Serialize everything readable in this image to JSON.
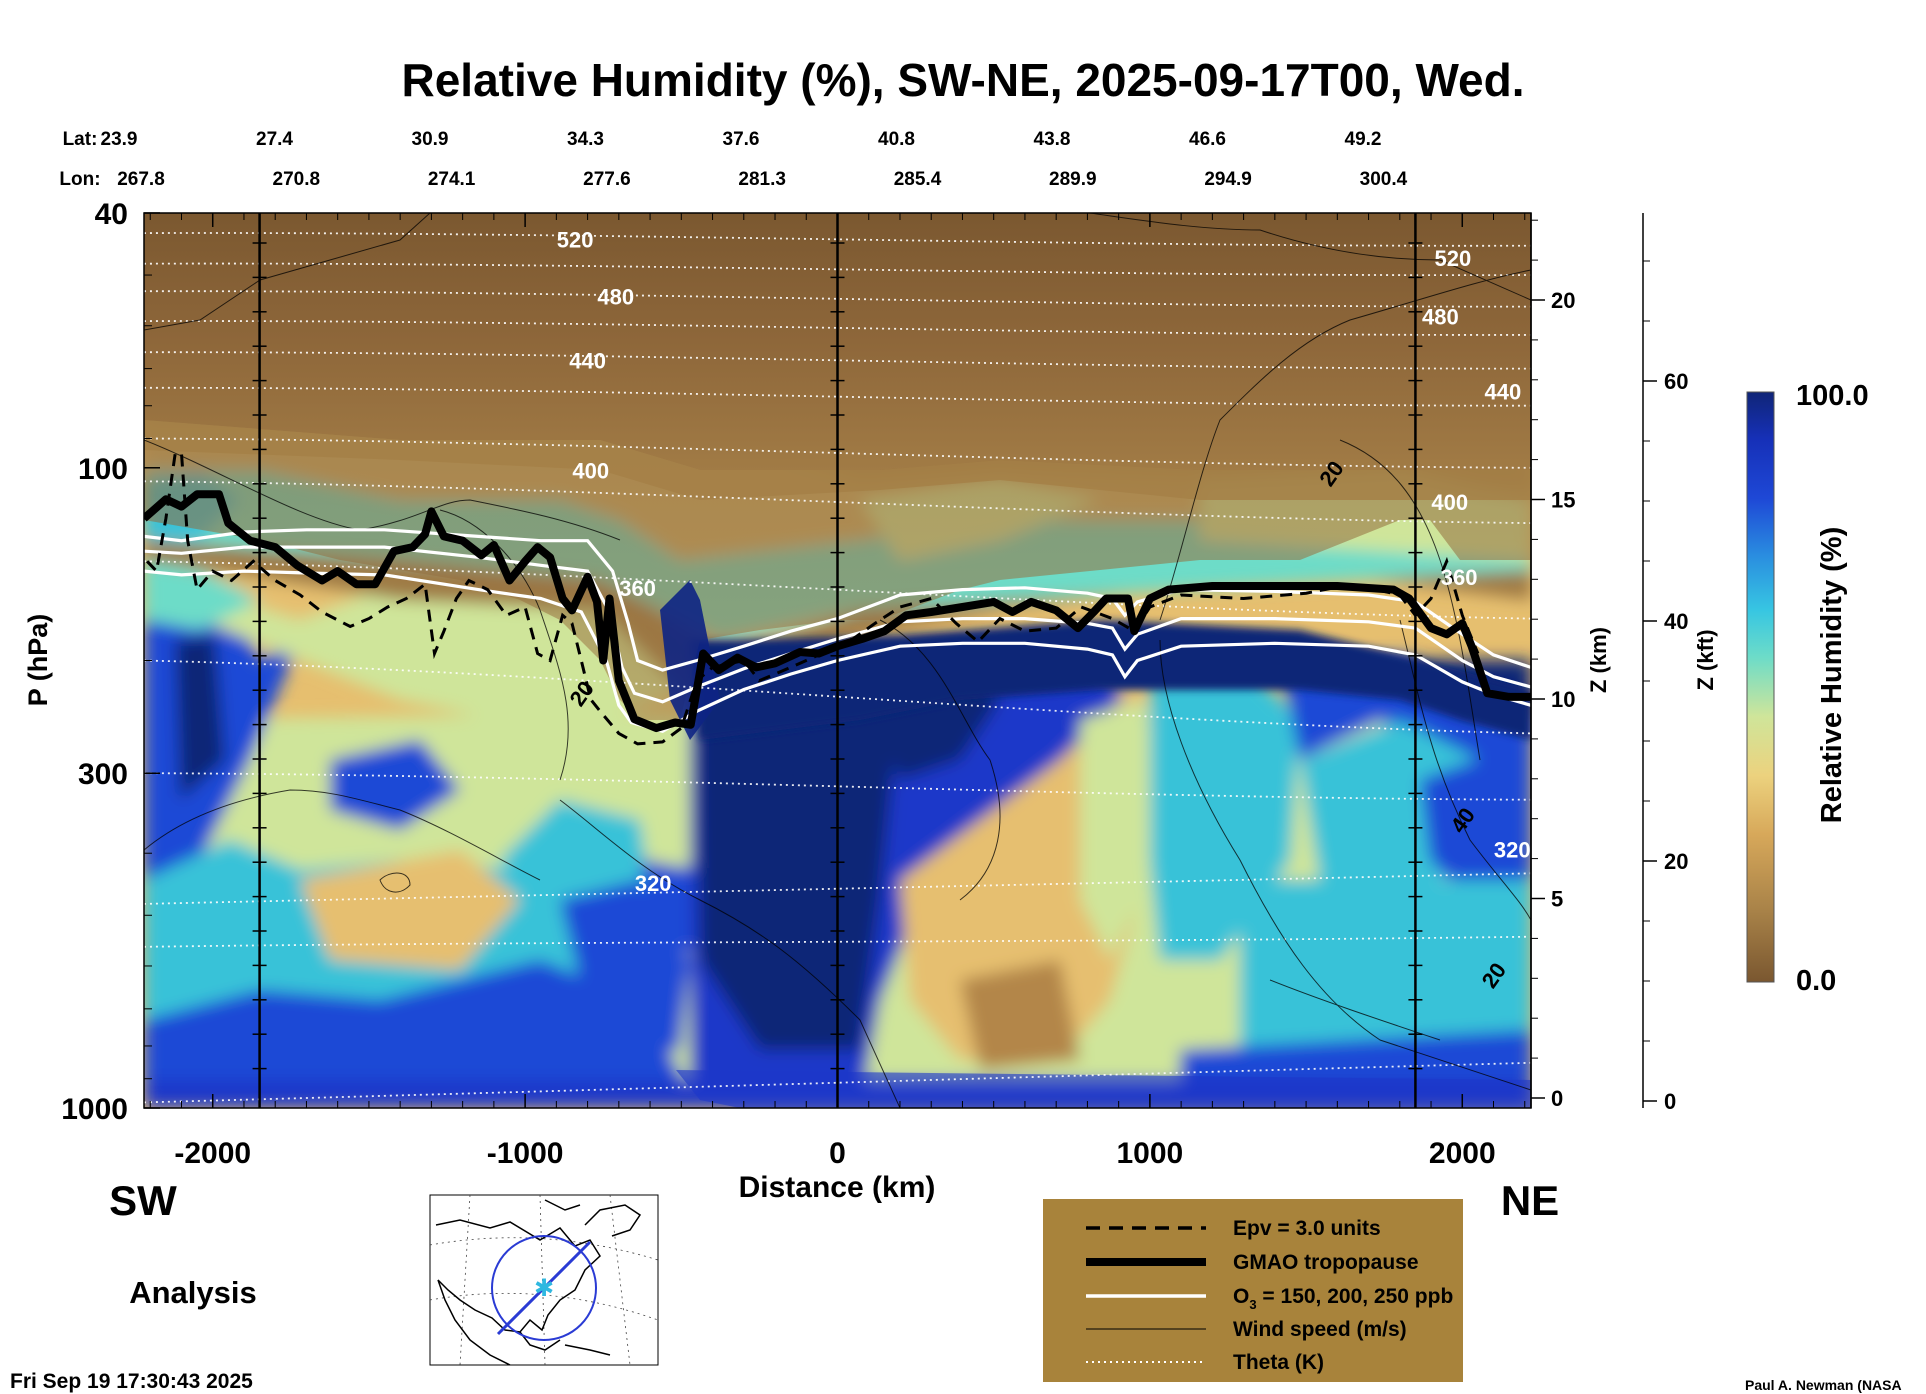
{
  "chart_data": {
    "type": "heatmap",
    "title": "Relative Humidity (%), SW-NE, 2025-09-17T00, Wed.",
    "xlabel": "Distance (km)",
    "ylabel": "P (hPa)",
    "z_km_label": "Z (km)",
    "z_kft_label": "Z (kft)",
    "colorbar_label": "Relative Humidity (%)",
    "colorbar_max": "100.0",
    "colorbar_min": "0.0",
    "xlim": [
      -2220,
      2220
    ],
    "ylim_hpa": [
      1000,
      40
    ],
    "x_ticks": [
      "-2000",
      "-1000",
      "0",
      "1000",
      "2000"
    ],
    "x_tick_values": [
      -2000,
      -1000,
      0,
      1000,
      2000
    ],
    "p_ticks": [
      "40",
      "100",
      "300",
      "1000"
    ],
    "p_tick_values": [
      40,
      100,
      300,
      1000
    ],
    "z_km_ticks": [
      "0",
      "5",
      "10",
      "15",
      "20"
    ],
    "z_km_values": [
      0,
      5,
      10,
      15,
      20
    ],
    "z_kft_ticks": [
      "0",
      "20",
      "40",
      "60"
    ],
    "z_kft_values": [
      0,
      20,
      40,
      60
    ],
    "lat_label": "Lat:",
    "lon_label": "Lon:",
    "lat_values": [
      "23.9",
      "27.4",
      "30.9",
      "34.3",
      "37.6",
      "40.8",
      "43.8",
      "46.6",
      "49.2"
    ],
    "lon_values": [
      "267.8",
      "270.8",
      "274.1",
      "277.6",
      "281.3",
      "285.4",
      "289.9",
      "294.9",
      "300.4"
    ],
    "theta_labels": [
      {
        "text": "520",
        "x": -840,
        "p": 44
      },
      {
        "text": "480",
        "x": -710,
        "p": 54
      },
      {
        "text": "440",
        "x": -800,
        "p": 68
      },
      {
        "text": "400",
        "x": -790,
        "p": 101
      },
      {
        "text": "360",
        "x": -640,
        "p": 154
      },
      {
        "text": "320",
        "x": -590,
        "p": 445
      },
      {
        "text": "520",
        "x": 1970,
        "p": 47
      },
      {
        "text": "480",
        "x": 1930,
        "p": 58
      },
      {
        "text": "440",
        "x": 2130,
        "p": 76
      },
      {
        "text": "400",
        "x": 1960,
        "p": 113
      },
      {
        "text": "360",
        "x": 1990,
        "p": 148
      },
      {
        "text": "320",
        "x": 2160,
        "p": 395
      }
    ],
    "wind_labels": [
      {
        "text": "20",
        "x": 1580,
        "p": 102
      },
      {
        "text": "20",
        "x": -820,
        "p": 225
      },
      {
        "text": "40",
        "x": 2000,
        "p": 355
      },
      {
        "text": "20",
        "x": 2100,
        "p": 620
      }
    ],
    "tropopause": [
      [
        -2220,
        120
      ],
      [
        -2150,
        112
      ],
      [
        -2100,
        115
      ],
      [
        -2050,
        110
      ],
      [
        -1980,
        110
      ],
      [
        -1950,
        122
      ],
      [
        -1880,
        130
      ],
      [
        -1800,
        133
      ],
      [
        -1730,
        142
      ],
      [
        -1650,
        150
      ],
      [
        -1600,
        145
      ],
      [
        -1540,
        152
      ],
      [
        -1480,
        152
      ],
      [
        -1420,
        135
      ],
      [
        -1360,
        133
      ],
      [
        -1320,
        127
      ],
      [
        -1300,
        117
      ],
      [
        -1260,
        128
      ],
      [
        -1200,
        130
      ],
      [
        -1140,
        137
      ],
      [
        -1100,
        132
      ],
      [
        -1050,
        150
      ],
      [
        -1000,
        140
      ],
      [
        -960,
        133
      ],
      [
        -920,
        138
      ],
      [
        -880,
        160
      ],
      [
        -850,
        167
      ],
      [
        -800,
        148
      ],
      [
        -770,
        162
      ],
      [
        -750,
        200
      ],
      [
        -730,
        160
      ],
      [
        -700,
        215
      ],
      [
        -650,
        247
      ],
      [
        -580,
        255
      ],
      [
        -520,
        250
      ],
      [
        -470,
        252
      ],
      [
        -430,
        195
      ],
      [
        -380,
        207
      ],
      [
        -320,
        198
      ],
      [
        -260,
        205
      ],
      [
        -200,
        202
      ],
      [
        -120,
        194
      ],
      [
        -60,
        195
      ],
      [
        0,
        190
      ],
      [
        80,
        185
      ],
      [
        150,
        180
      ],
      [
        220,
        170
      ],
      [
        300,
        168
      ],
      [
        400,
        165
      ],
      [
        500,
        162
      ],
      [
        560,
        168
      ],
      [
        620,
        162
      ],
      [
        700,
        167
      ],
      [
        770,
        178
      ],
      [
        820,
        168
      ],
      [
        860,
        160
      ],
      [
        930,
        160
      ],
      [
        950,
        180
      ],
      [
        1000,
        160
      ],
      [
        1060,
        155
      ],
      [
        1200,
        153
      ],
      [
        1400,
        153
      ],
      [
        1600,
        153
      ],
      [
        1780,
        155
      ],
      [
        1830,
        160
      ],
      [
        1900,
        178
      ],
      [
        1950,
        182
      ],
      [
        2000,
        175
      ],
      [
        2030,
        190
      ],
      [
        2080,
        225
      ],
      [
        2150,
        228
      ],
      [
        2220,
        228
      ]
    ],
    "epv_contour": [
      [
        -2210,
        140
      ],
      [
        -2180,
        145
      ],
      [
        -2150,
        120
      ],
      [
        -2120,
        95
      ],
      [
        -2100,
        95
      ],
      [
        -2080,
        130
      ],
      [
        -2050,
        155
      ],
      [
        -2000,
        145
      ],
      [
        -1940,
        150
      ],
      [
        -1870,
        140
      ],
      [
        -1800,
        150
      ],
      [
        -1720,
        158
      ],
      [
        -1650,
        168
      ],
      [
        -1560,
        177
      ],
      [
        -1500,
        172
      ],
      [
        -1440,
        165
      ],
      [
        -1380,
        160
      ],
      [
        -1320,
        152
      ],
      [
        -1290,
        195
      ],
      [
        -1260,
        180
      ],
      [
        -1220,
        160
      ],
      [
        -1180,
        150
      ],
      [
        -1120,
        155
      ],
      [
        -1060,
        170
      ],
      [
        -1000,
        165
      ],
      [
        -960,
        195
      ],
      [
        -920,
        200
      ],
      [
        -880,
        170
      ],
      [
        -850,
        175
      ],
      [
        -820,
        200
      ],
      [
        -790,
        230
      ],
      [
        -760,
        240
      ],
      [
        -700,
        260
      ],
      [
        -640,
        270
      ],
      [
        -560,
        268
      ],
      [
        -500,
        255
      ],
      [
        -450,
        215
      ],
      [
        -400,
        205
      ],
      [
        -300,
        200
      ],
      [
        -250,
        215
      ],
      [
        -150,
        205
      ],
      [
        -50,
        195
      ],
      [
        50,
        185
      ],
      [
        120,
        175
      ],
      [
        200,
        165
      ],
      [
        300,
        160
      ],
      [
        380,
        175
      ],
      [
        450,
        187
      ],
      [
        520,
        172
      ],
      [
        600,
        180
      ],
      [
        700,
        178
      ],
      [
        780,
        165
      ],
      [
        880,
        172
      ],
      [
        950,
        180
      ],
      [
        1000,
        165
      ],
      [
        1100,
        158
      ],
      [
        1300,
        160
      ],
      [
        1500,
        157
      ],
      [
        1650,
        152
      ],
      [
        1800,
        158
      ],
      [
        1850,
        170
      ],
      [
        1900,
        160
      ],
      [
        1950,
        140
      ],
      [
        2000,
        170
      ],
      [
        2050,
        195
      ]
    ],
    "o3_contours": [
      {
        "ppb": "150",
        "points": [
          [
            -2220,
            128
          ],
          [
            -2100,
            130
          ],
          [
            -1900,
            126
          ],
          [
            -1700,
            125
          ],
          [
            -1450,
            125
          ],
          [
            -1150,
            128
          ],
          [
            -950,
            130
          ],
          [
            -800,
            130
          ],
          [
            -720,
            145
          ],
          [
            -670,
            175
          ],
          [
            -640,
            200
          ],
          [
            -560,
            207
          ],
          [
            -450,
            200
          ],
          [
            -300,
            190
          ],
          [
            -150,
            180
          ],
          [
            0,
            172
          ],
          [
            200,
            158
          ],
          [
            400,
            155
          ],
          [
            600,
            154
          ],
          [
            800,
            157
          ],
          [
            880,
            160
          ],
          [
            920,
            170
          ],
          [
            960,
            162
          ],
          [
            1100,
            155
          ],
          [
            1400,
            156
          ],
          [
            1700,
            158
          ],
          [
            1850,
            162
          ],
          [
            2000,
            182
          ],
          [
            2100,
            196
          ],
          [
            2220,
            205
          ]
        ]
      },
      {
        "ppb": "200",
        "points": [
          [
            -2220,
            135
          ],
          [
            -2100,
            136
          ],
          [
            -1900,
            133
          ],
          [
            -1700,
            133
          ],
          [
            -1450,
            133
          ],
          [
            -1150,
            138
          ],
          [
            -950,
            142
          ],
          [
            -800,
            145
          ],
          [
            -730,
            168
          ],
          [
            -690,
            205
          ],
          [
            -650,
            225
          ],
          [
            -560,
            232
          ],
          [
            -450,
            220
          ],
          [
            -300,
            206
          ],
          [
            -150,
            195
          ],
          [
            0,
            185
          ],
          [
            200,
            174
          ],
          [
            400,
            172
          ],
          [
            600,
            172
          ],
          [
            800,
            175
          ],
          [
            880,
            178
          ],
          [
            920,
            192
          ],
          [
            960,
            182
          ],
          [
            1100,
            172
          ],
          [
            1400,
            172
          ],
          [
            1700,
            174
          ],
          [
            1850,
            178
          ],
          [
            2000,
            200
          ],
          [
            2100,
            212
          ],
          [
            2220,
            220
          ]
        ]
      },
      {
        "ppb": "250",
        "points": [
          [
            -2220,
            145
          ],
          [
            -2100,
            147
          ],
          [
            -1900,
            145
          ],
          [
            -1700,
            146
          ],
          [
            -1450,
            147
          ],
          [
            -1150,
            155
          ],
          [
            -950,
            160
          ],
          [
            -820,
            168
          ],
          [
            -740,
            200
          ],
          [
            -700,
            235
          ],
          [
            -660,
            250
          ],
          [
            -560,
            258
          ],
          [
            -450,
            240
          ],
          [
            -300,
            222
          ],
          [
            -150,
            210
          ],
          [
            0,
            200
          ],
          [
            200,
            190
          ],
          [
            400,
            188
          ],
          [
            600,
            188
          ],
          [
            800,
            192
          ],
          [
            880,
            196
          ],
          [
            920,
            212
          ],
          [
            960,
            200
          ],
          [
            1100,
            190
          ],
          [
            1400,
            188
          ],
          [
            1700,
            190
          ],
          [
            1850,
            196
          ],
          [
            2000,
            216
          ],
          [
            2100,
            226
          ],
          [
            2220,
            235
          ]
        ]
      }
    ],
    "theta_lines": [
      {
        "theta": 520,
        "p_left": 43,
        "p_right": 45
      },
      {
        "theta": 500,
        "p_left": 48,
        "p_right": 50
      },
      {
        "theta": 480,
        "p_left": 53,
        "p_right": 56
      },
      {
        "theta": 460,
        "p_left": 59,
        "p_right": 62
      },
      {
        "theta": 440,
        "p_left": 66,
        "p_right": 70
      },
      {
        "theta": 420,
        "p_left": 75,
        "p_right": 80
      },
      {
        "theta": 400,
        "p_left": 90,
        "p_right": 100
      },
      {
        "theta": 380,
        "p_left": 105,
        "p_right": 122
      },
      {
        "theta": 340,
        "p_left": 140,
        "p_right": 172
      },
      {
        "theta": 330,
        "p_left": 200,
        "p_right": 260
      },
      {
        "theta": 320,
        "p_left": 300,
        "p_right": 330
      },
      {
        "theta": 310,
        "p_left": 480,
        "p_right": 430
      },
      {
        "theta": 300,
        "p_left": 560,
        "p_right": 540
      },
      {
        "theta": 290,
        "p_left": 980,
        "p_right": 850
      }
    ],
    "vertical_lines_km": [
      -1850,
      0,
      1850
    ],
    "rh_fields": {
      "stratosphere": 2,
      "upper_trop_sw": 45,
      "moist_column_center": 95,
      "dry_slot_center_east": 30,
      "boundary_layer": 85
    }
  },
  "labels": {
    "sw": "SW",
    "ne": "NE",
    "analysis": "Analysis",
    "timestamp": "Fri Sep 19 17:30:43 2025",
    "credit": "Paul A. Newman (NASA"
  },
  "legend": {
    "epv": "Epv = 3.0 units",
    "tropopause": "GMAO tropopause",
    "o3_prefix": "O",
    "o3_sub": "3",
    "o3_suffix": " = 150, 200, 250 ppb",
    "wind": "Wind speed (m/s)",
    "theta": "Theta (K)"
  },
  "colors": {
    "legend_bg": "#a8833b",
    "strat_brown": "#8a6232",
    "dark_blue": "#0d2484",
    "blue": "#1c37c9",
    "cyan": "#38c2d8",
    "tan": "#e2b463"
  }
}
